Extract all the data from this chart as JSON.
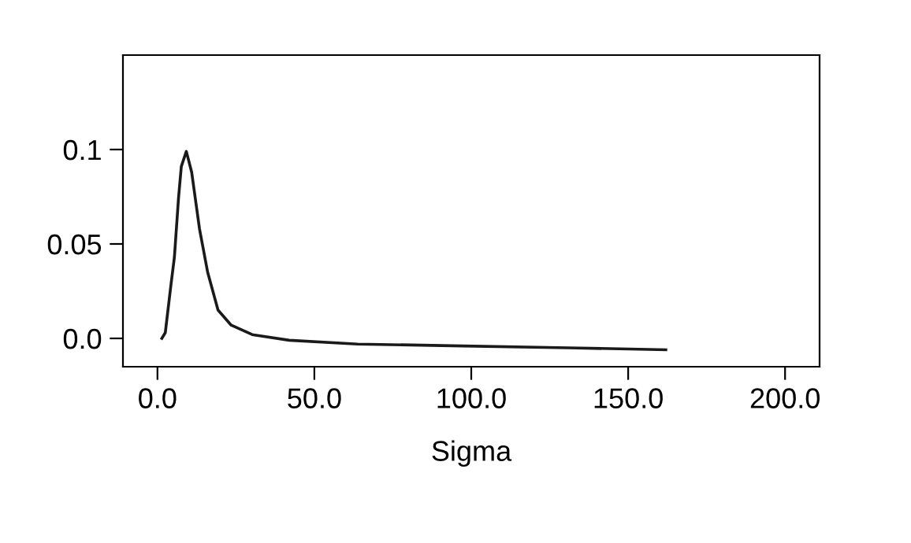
{
  "chart_data": {
    "type": "line",
    "xlabel": "Sigma",
    "x": [
      1.4,
      2.5,
      4.2,
      5.4,
      6.7,
      7.6,
      9.2,
      10.9,
      13.4,
      16,
      19.3,
      23.5,
      30.2,
      42,
      63.8,
      97.4,
      131,
      162
    ],
    "series": [
      {
        "color": "#1a1a1a",
        "values": [
          0,
          0.003,
          0.027,
          0.043,
          0.074,
          0.091,
          0.099,
          0.088,
          0.058,
          0.035,
          0.015,
          0.007,
          0.002,
          -0.001,
          -0.003,
          -0.004,
          -0.005,
          -0.006
        ]
      }
    ],
    "xlim": [
      -11,
      211
    ],
    "ylim": [
      -0.015,
      0.15
    ],
    "xticks": [
      {
        "value": 0,
        "label": "0.0"
      },
      {
        "value": 50,
        "label": "50.0"
      },
      {
        "value": 100,
        "label": "100.0"
      },
      {
        "value": 150,
        "label": "150.0"
      },
      {
        "value": 200,
        "label": "200.0"
      }
    ],
    "yticks": [
      {
        "value": 0,
        "label": "0.0"
      },
      {
        "value": 0.05,
        "label": "0.05"
      },
      {
        "value": 0.1,
        "label": "0.1"
      }
    ],
    "grid": false,
    "legend": false,
    "marker": "none",
    "line_style": "solid"
  }
}
